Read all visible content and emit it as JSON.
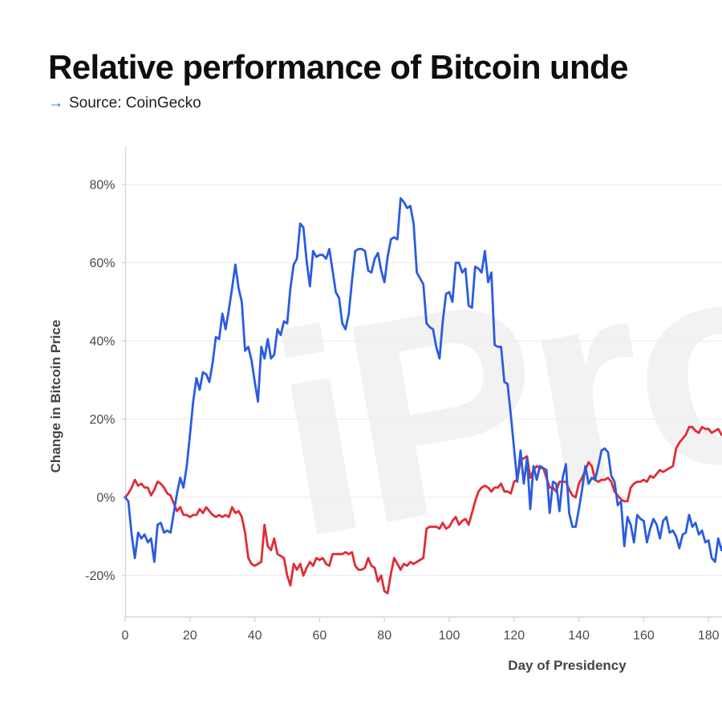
{
  "page": {
    "title": "Relative performance of Bitcoin unde",
    "source_arrow": "→",
    "source_label": "Source: CoinGecko",
    "watermark": "iProto"
  },
  "colors": {
    "accent_arrow": "#2563eb",
    "blue_line": "#2a5ce0",
    "red_line": "#e12b35",
    "gridline": "#ededed",
    "axis": "#d5d5d5",
    "tick_label": "#4a4a4a",
    "watermark": "#f2f2f2"
  },
  "chart_data": {
    "type": "line",
    "title": "Relative performance of Bitcoin unde",
    "xlabel": "Day of Presidency",
    "ylabel": "Change in Bitcoin Price",
    "x_ticks": [
      0,
      20,
      40,
      60,
      80,
      100,
      120,
      140,
      160,
      180
    ],
    "y_ticks": [
      80,
      60,
      40,
      20,
      0,
      -20
    ],
    "xlim": [
      0,
      185
    ],
    "ylim": [
      -31,
      90
    ],
    "grid": true,
    "legend": "none-visible",
    "series": [
      {
        "name": "red",
        "color": "#e12b35",
        "x_start": 0,
        "x_step": 1,
        "values": [
          0,
          1,
          2.5,
          4.5,
          3,
          3.5,
          2.5,
          2.5,
          0.5,
          2,
          4,
          3.5,
          2.5,
          1,
          0.5,
          -1.5,
          -3.5,
          -2.5,
          -4.5,
          -4.5,
          -5,
          -4.5,
          -4.5,
          -3,
          -4,
          -2.5,
          -3.5,
          -4.5,
          -5,
          -4.5,
          -5,
          -4.5,
          -5,
          -2.5,
          -4,
          -3.5,
          -5,
          -9,
          -15.5,
          -17,
          -17.5,
          -17,
          -16.5,
          -7,
          -12.5,
          -13.5,
          -10.5,
          -14.5,
          -15,
          -15.5,
          -20,
          -22.5,
          -17,
          -18.5,
          -17,
          -20,
          -18,
          -16.5,
          -17.5,
          -15.5,
          -16,
          -15.5,
          -17,
          -17.5,
          -14.5,
          -14.5,
          -14.5,
          -14.5,
          -14,
          -14.5,
          -14,
          -17.5,
          -18.5,
          -18.5,
          -18,
          -15.5,
          -17.5,
          -18,
          -21.5,
          -20,
          -24,
          -24.5,
          -19.5,
          -15.5,
          -17,
          -18.5,
          -17,
          -17.5,
          -16.5,
          -17,
          -16.5,
          -16,
          -15.5,
          -8,
          -7.5,
          -7.5,
          -7.5,
          -8,
          -6.5,
          -8,
          -7.5,
          -6,
          -5,
          -7,
          -6,
          -5.5,
          -7,
          -4,
          -1,
          1.5,
          2.5,
          3,
          2.5,
          1.5,
          2.5,
          2.5,
          3.5,
          1.5,
          1.5,
          1,
          4,
          4.5,
          9.5,
          10,
          10.5,
          5,
          7,
          8,
          7.5,
          7.5,
          5,
          2.5,
          2.5,
          1.5,
          4,
          4,
          4,
          2,
          0.5,
          0,
          3.5,
          5,
          7,
          9,
          8,
          4.5,
          4,
          4.5,
          4.5,
          5,
          4,
          1.5,
          0.5,
          -0.5,
          -1,
          -1,
          2.5,
          3.5,
          4,
          4,
          4.5,
          4,
          5.5,
          5,
          6,
          7,
          6.5,
          7,
          7.5,
          8,
          12.5,
          14,
          15,
          16,
          18,
          18,
          17,
          16.5,
          18,
          17.5,
          17.5,
          16.5,
          17,
          17.5,
          16,
          16.5
        ]
      },
      {
        "name": "blue",
        "color": "#2a5ce0",
        "x_start": 0,
        "x_step": 1,
        "values": [
          0,
          -1,
          -9.5,
          -15.5,
          -9,
          -10.5,
          -9.5,
          -11.5,
          -10.5,
          -16.5,
          -7,
          -6.5,
          -9,
          -8.5,
          -9,
          -4,
          1,
          5,
          2.5,
          8,
          16,
          24.5,
          30.5,
          27.5,
          32,
          31.5,
          29.5,
          34.5,
          41,
          40.5,
          47,
          43,
          48,
          53.5,
          59.5,
          53.5,
          50,
          37.5,
          38.5,
          35,
          29.5,
          24.5,
          38.5,
          35.5,
          40.5,
          35.5,
          36.5,
          43,
          41.5,
          45,
          44.5,
          53.5,
          59.5,
          61,
          70,
          69,
          60.5,
          54,
          63,
          61.5,
          62,
          62,
          61,
          63.5,
          58,
          52.5,
          51,
          44.5,
          43,
          47,
          55.5,
          63,
          63.5,
          63.5,
          63,
          58,
          57.5,
          61,
          62.5,
          58,
          55,
          61.5,
          66,
          66.5,
          66,
          76.5,
          75.5,
          74,
          74.5,
          70,
          57.5,
          56,
          54.5,
          44.5,
          43.5,
          43,
          38.5,
          35.5,
          45,
          52,
          52.5,
          50,
          60,
          60,
          57.5,
          58.5,
          49,
          48.5,
          59,
          58.5,
          57.5,
          63,
          55,
          57.5,
          39,
          38.5,
          38.5,
          29.5,
          29,
          21,
          12.5,
          4,
          12,
          3.5,
          10,
          -3,
          8,
          4.5,
          8,
          7.5,
          7,
          -4,
          4,
          3.5,
          -3.5,
          5,
          8.5,
          -4,
          -7.5,
          -7.5,
          -3,
          2,
          8,
          3.5,
          5,
          4.5,
          8,
          12,
          12.5,
          11.5,
          5.5,
          4,
          -2,
          -1,
          -12.5,
          -5,
          -7,
          -11.5,
          -4.5,
          -5.5,
          -6,
          -11.5,
          -8,
          -5.5,
          -7,
          -10.5,
          -6,
          -5,
          -9,
          -8.5,
          -10,
          -13,
          -9.5,
          -9,
          -4.5,
          -7.5,
          -6.5,
          -9.5,
          -8.5,
          -11.5,
          -11,
          -15.5,
          -16.5,
          -10.5,
          -13.5,
          -11
        ]
      }
    ]
  }
}
